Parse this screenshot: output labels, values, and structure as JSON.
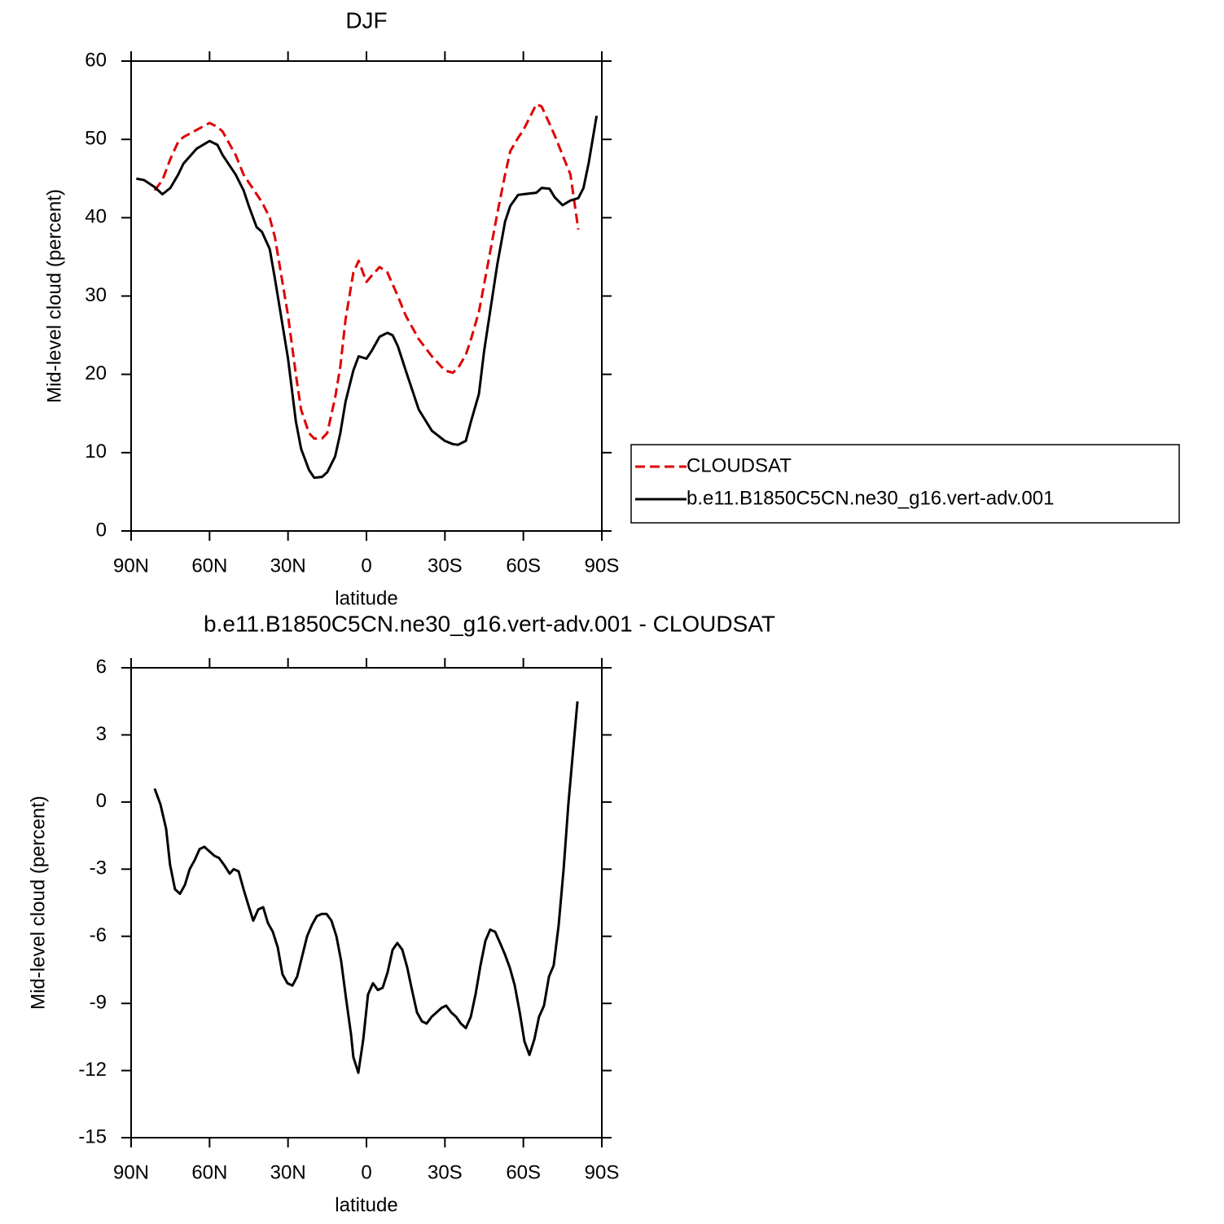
{
  "chart_data": [
    {
      "type": "line",
      "title": "DJF",
      "xlabel": "latitude",
      "ylabel": "Mid-level cloud (percent)",
      "x": [
        88,
        85,
        81,
        78,
        75,
        72,
        70,
        65,
        60,
        57,
        55,
        50,
        47,
        45,
        42,
        40,
        37,
        35,
        30,
        27,
        25,
        22,
        20,
        17,
        15,
        12,
        10,
        8,
        5,
        3,
        0,
        -2,
        -5,
        -8,
        -10,
        -12,
        -15,
        -20,
        -25,
        -30,
        -33,
        -35,
        -38,
        -40,
        -43,
        -45,
        -50,
        -53,
        -55,
        -58,
        -60,
        -65,
        -67,
        -70,
        -72,
        -75,
        -78,
        -81,
        -83,
        -85,
        -88
      ],
      "series": [
        {
          "name": "CLOUDSAT",
          "color": "#e00000",
          "line_style": "dashed",
          "values": [
            null,
            null,
            43.5,
            44.8,
            47.5,
            49.7,
            50.3,
            51.2,
            52.1,
            51.6,
            51.0,
            48.0,
            45.5,
            44.5,
            43.0,
            42.0,
            40.0,
            37.5,
            27.5,
            20.0,
            15.5,
            12.5,
            11.8,
            11.8,
            12.5,
            17.0,
            21.0,
            27.0,
            33.0,
            34.5,
            31.8,
            32.6,
            33.7,
            33.0,
            31.5,
            30.0,
            27.5,
            24.5,
            22.3,
            20.5,
            20.2,
            20.8,
            22.5,
            24.5,
            28.0,
            31.5,
            40.5,
            45.5,
            48.5,
            50.2,
            51.2,
            54.5,
            54.2,
            52.0,
            50.5,
            48.0,
            45.5,
            38.5,
            null,
            null,
            null
          ]
        },
        {
          "name": "b.e11.B1850C5CN.ne30_g16.vert-adv.001",
          "color": "#000000",
          "line_style": "solid",
          "values": [
            45.0,
            44.8,
            43.9,
            43.0,
            43.8,
            45.5,
            46.9,
            48.8,
            49.8,
            49.3,
            48.0,
            45.5,
            43.5,
            41.5,
            38.8,
            38.2,
            36.0,
            32.2,
            22.0,
            14.0,
            10.5,
            7.8,
            6.8,
            6.9,
            7.5,
            9.5,
            12.5,
            16.5,
            20.5,
            22.3,
            22.0,
            23.0,
            24.8,
            25.3,
            25.0,
            23.6,
            20.5,
            15.5,
            12.8,
            11.5,
            11.1,
            11.0,
            11.5,
            14.0,
            17.5,
            23.0,
            34.0,
            39.5,
            41.5,
            42.9,
            43.0,
            43.2,
            43.8,
            43.7,
            42.6,
            41.6,
            42.2,
            42.5,
            43.8,
            47.0,
            53.0
          ]
        }
      ],
      "xlim": [
        90,
        -90
      ],
      "xticks": [
        {
          "value": 90,
          "label": "90N"
        },
        {
          "value": 60,
          "label": "60N"
        },
        {
          "value": 30,
          "label": "30N"
        },
        0,
        {
          "value": -30,
          "label": "30S"
        },
        {
          "value": -60,
          "label": "60S"
        },
        {
          "value": -90,
          "label": "90S"
        }
      ],
      "ylim": [
        0,
        60
      ],
      "yticks": [
        0,
        10,
        20,
        30,
        40,
        50,
        60
      ],
      "grid": false,
      "legend": "right"
    },
    {
      "type": "line",
      "title": "b.e11.B1850C5CN.ne30_g16.vert-adv.001 - CLOUDSAT",
      "xlabel": "latitude",
      "ylabel": "Mid-level cloud (percent)",
      "x": [
        81.0,
        78.8,
        76.6,
        75.1,
        73.2,
        71.3,
        69.4,
        67.6,
        65.7,
        63.8,
        62.0,
        60.1,
        58.2,
        56.4,
        54.5,
        52.3,
        50.8,
        48.9,
        47.0,
        45.2,
        43.3,
        41.4,
        39.5,
        37.7,
        35.8,
        33.9,
        32.1,
        30.2,
        28.3,
        26.5,
        24.6,
        22.7,
        20.9,
        19.0,
        17.1,
        15.3,
        13.4,
        11.5,
        9.7,
        7.8,
        5.9,
        5.0,
        3.1,
        1.2,
        -0.6,
        -2.5,
        -4.4,
        -6.2,
        -8.1,
        -10.0,
        -11.8,
        -13.7,
        -15.6,
        -17.4,
        -19.3,
        -21.2,
        -23.0,
        -24.9,
        -26.8,
        -28.7,
        -30.5,
        -32.4,
        -34.3,
        -36.1,
        -38.0,
        -39.9,
        -41.7,
        -43.6,
        -45.5,
        -47.3,
        -49.2,
        -51.1,
        -52.9,
        -54.8,
        -56.7,
        -58.6,
        -60.4,
        -62.3,
        -64.2,
        -66.0,
        -67.9,
        -69.8,
        -71.6,
        -73.5,
        -75.4,
        -77.2,
        -78.8,
        -80.7
      ],
      "values": [
        0.6,
        -0.1,
        -1.2,
        -2.8,
        -3.9,
        -4.1,
        -3.7,
        -3.0,
        -2.6,
        -2.1,
        -2.0,
        -2.2,
        -2.4,
        -2.5,
        -2.8,
        -3.2,
        -3.0,
        -3.1,
        -3.9,
        -4.6,
        -5.3,
        -4.8,
        -4.7,
        -5.4,
        -5.8,
        -6.5,
        -7.7,
        -8.1,
        -8.2,
        -7.8,
        -6.9,
        -6.0,
        -5.5,
        -5.1,
        -5.0,
        -5.0,
        -5.3,
        -6.0,
        -7.1,
        -8.8,
        -10.4,
        -11.4,
        -12.1,
        -10.6,
        -8.6,
        -8.1,
        -8.4,
        -8.3,
        -7.6,
        -6.6,
        -6.3,
        -6.6,
        -7.4,
        -8.4,
        -9.4,
        -9.8,
        -9.9,
        -9.6,
        -9.4,
        -9.2,
        -9.1,
        -9.4,
        -9.6,
        -9.9,
        -10.1,
        -9.6,
        -8.6,
        -7.3,
        -6.2,
        -5.7,
        -5.8,
        -6.3,
        -6.8,
        -7.4,
        -8.2,
        -9.4,
        -10.7,
        -11.3,
        -10.6,
        -9.6,
        -9.1,
        -7.8,
        -7.3,
        -5.5,
        -3.0,
        -0.1,
        2.0,
        4.5
      ],
      "color": "#000000",
      "xlim": [
        90,
        -90
      ],
      "xticks": [
        {
          "value": 90,
          "label": "90N"
        },
        {
          "value": 60,
          "label": "60N"
        },
        {
          "value": 30,
          "label": "30N"
        },
        0,
        {
          "value": -30,
          "label": "30S"
        },
        {
          "value": -60,
          "label": "60S"
        },
        {
          "value": -90,
          "label": "90S"
        }
      ],
      "ylim": [
        -15,
        6
      ],
      "yticks": [
        -15,
        -12,
        -9,
        -6,
        -3,
        0,
        3,
        6
      ],
      "grid": false
    }
  ]
}
